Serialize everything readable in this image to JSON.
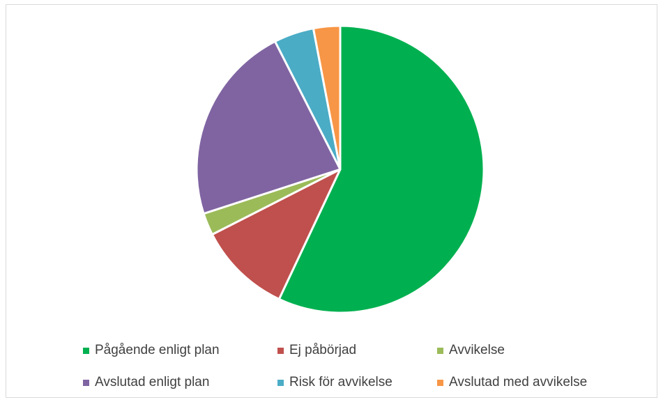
{
  "chart_data": {
    "type": "pie",
    "categories": [
      "Pågående enligt plan",
      "Ej påbörjad",
      "Avvikelse",
      "Avslutad enligt plan",
      "Risk för avvikelse",
      "Avslutad med avvikelse"
    ],
    "values": [
      57,
      10.5,
      2.5,
      22.5,
      4.5,
      3
    ],
    "colors": [
      "#00B050",
      "#C0504D",
      "#9BBB59",
      "#8064A2",
      "#4BACC6",
      "#F79646"
    ],
    "legend_position": "bottom",
    "title": ""
  }
}
